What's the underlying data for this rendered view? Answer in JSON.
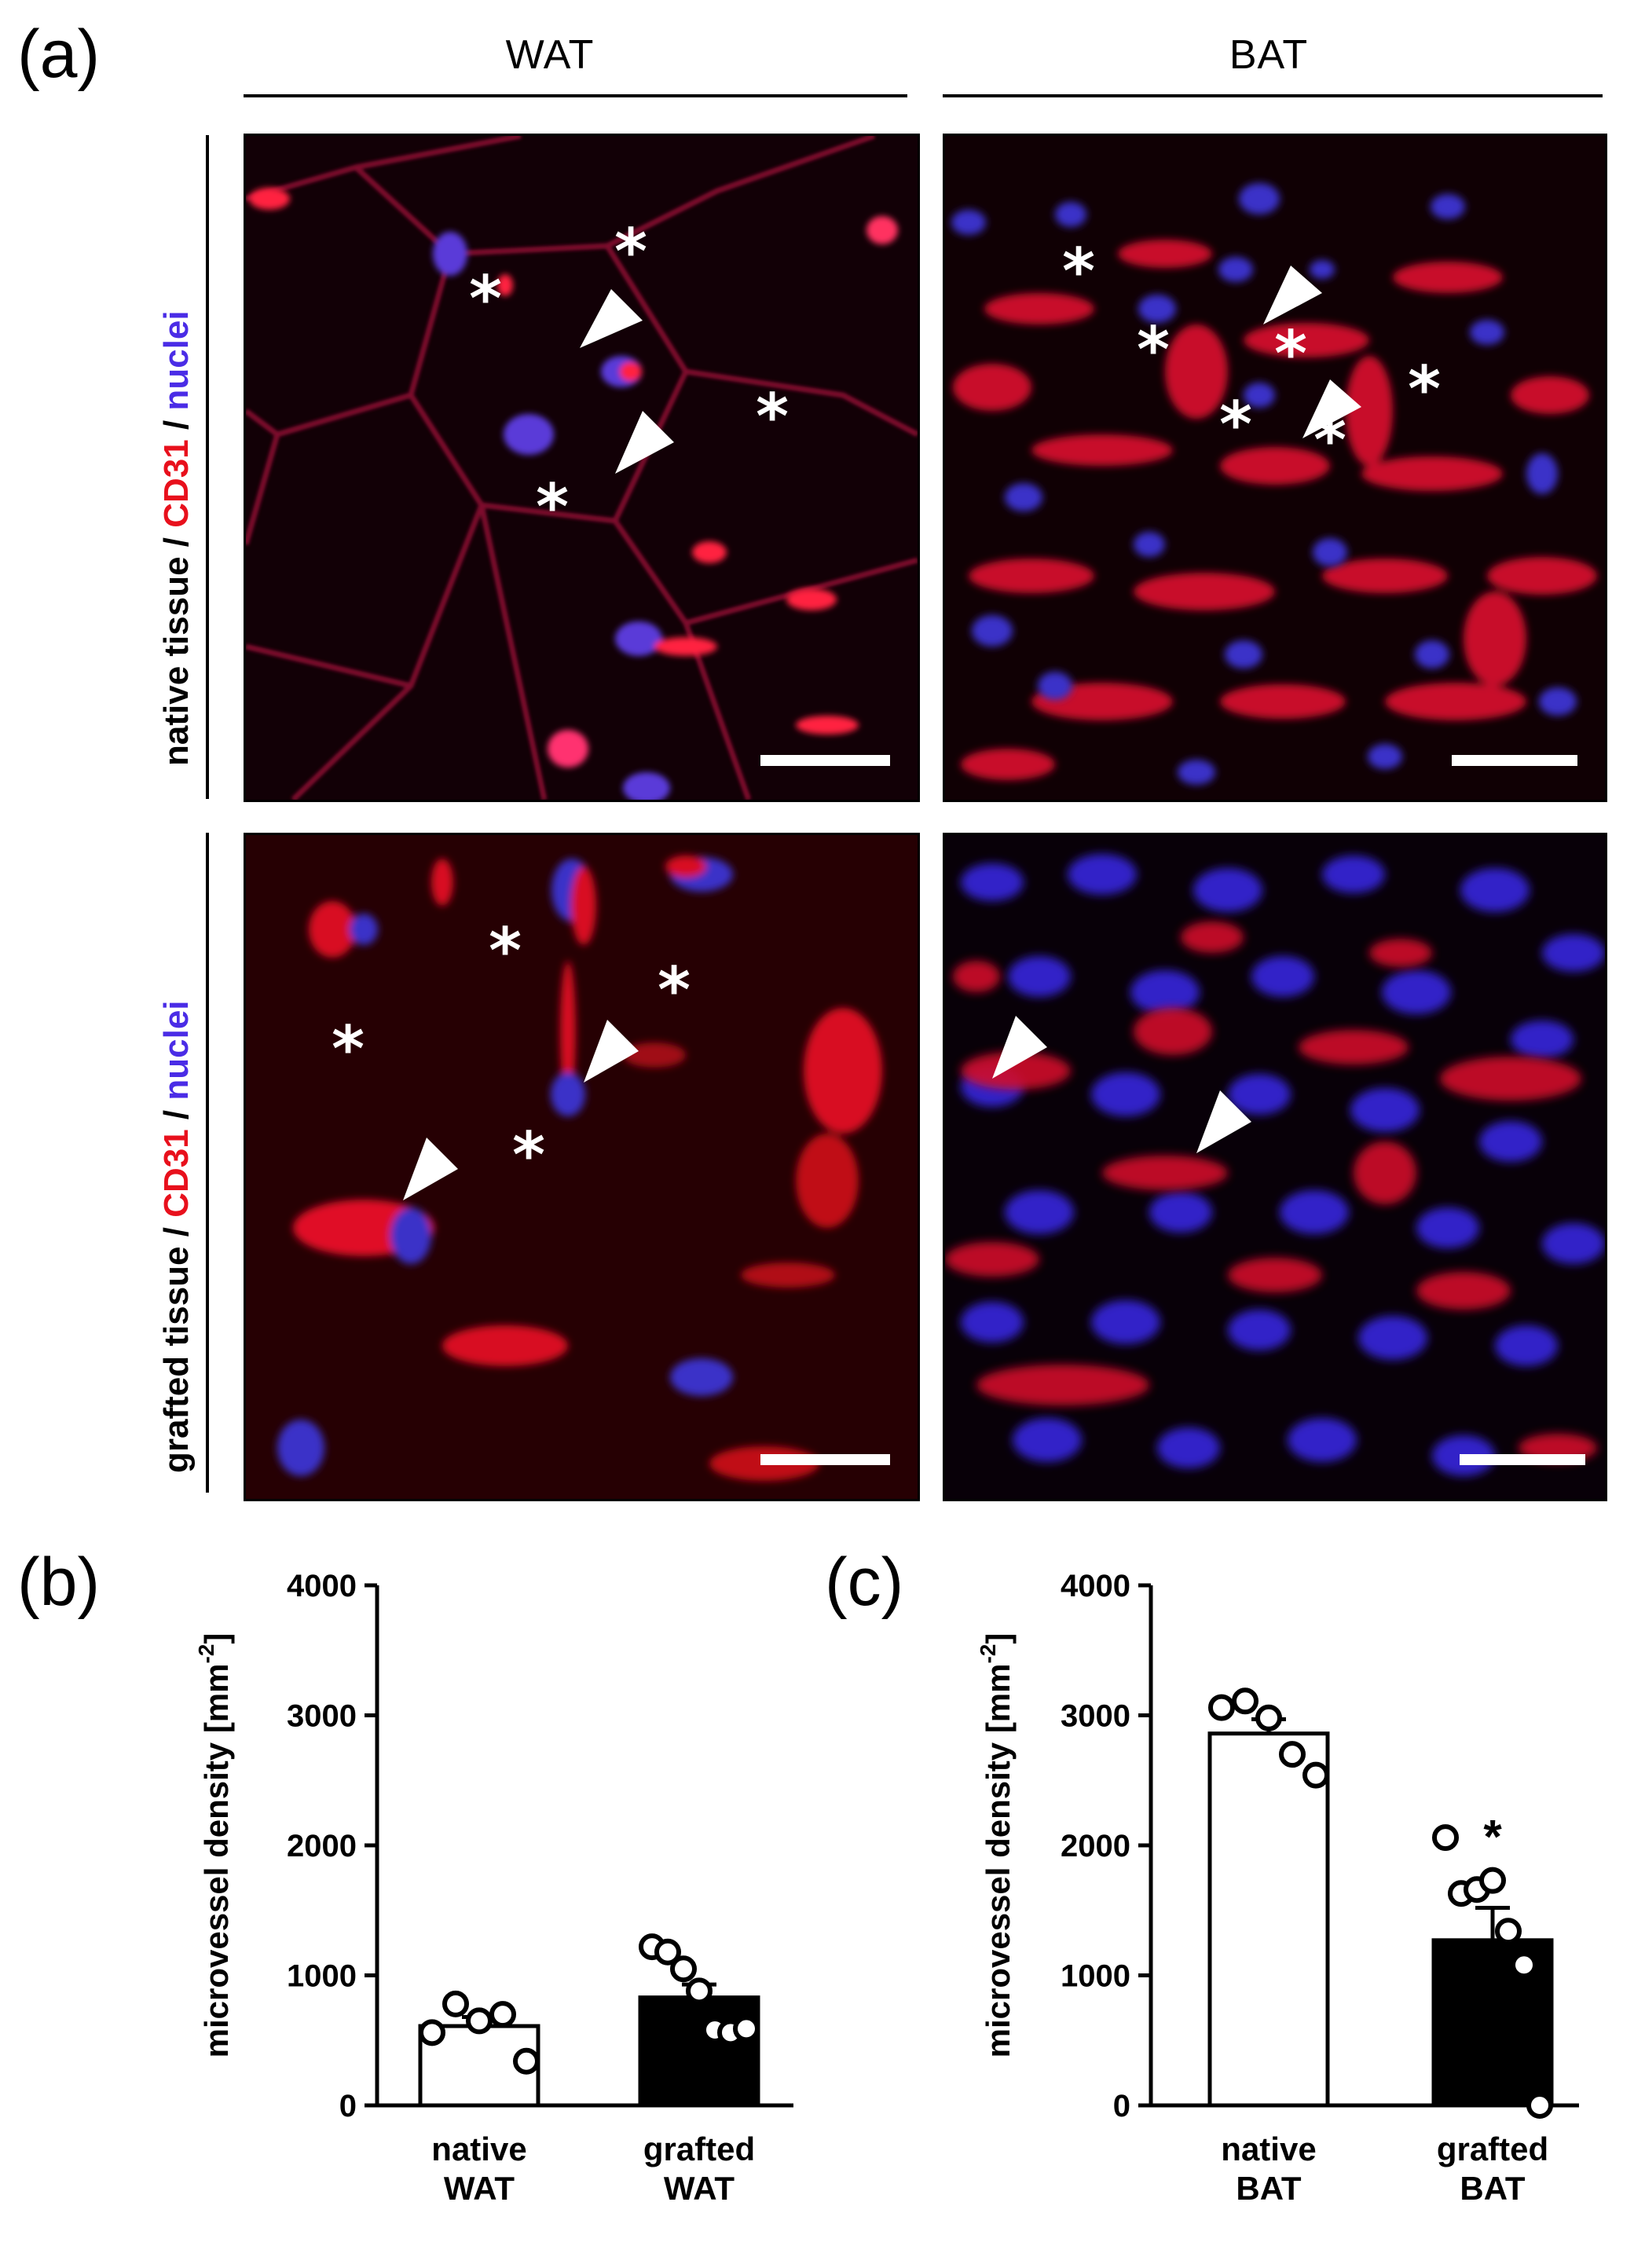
{
  "panels": {
    "a": "(a)",
    "b": "(b)",
    "c": "(c)"
  },
  "columns": [
    "WAT",
    "BAT"
  ],
  "row_labels": [
    {
      "prefix": "native tissue",
      "sep1": " / ",
      "marker1": "CD31",
      "sep2": " / ",
      "marker2": "nuclei"
    },
    {
      "prefix": "grafted tissue",
      "sep1": " / ",
      "marker1": "CD31",
      "sep2": " / ",
      "marker2": "nuclei"
    }
  ],
  "colors": {
    "cd31": "#e8101c",
    "nuclei": "#4a2ce6",
    "bar_native": "#ffffff",
    "bar_grafted": "#000000"
  },
  "chart_data": [
    {
      "type": "bar",
      "panel": "(b)",
      "ylabel": "microvessel density [mm",
      "ylabel_sup": "-2",
      "ylabel_close": "]",
      "ylim": [
        0,
        4000
      ],
      "yticks": [
        0,
        1000,
        2000,
        3000,
        4000
      ],
      "categories": [
        [
          "native",
          "WAT"
        ],
        [
          "grafted",
          "WAT"
        ]
      ],
      "values": [
        610,
        830
      ],
      "sem": [
        70,
        100
      ],
      "points": [
        [
          560,
          780,
          650,
          700,
          340
        ],
        [
          1220,
          1180,
          1050,
          880,
          580,
          560,
          590
        ]
      ],
      "significance": [
        "",
        ""
      ]
    },
    {
      "type": "bar",
      "panel": "(c)",
      "ylabel": "microvessel density [mm",
      "ylabel_sup": "-2",
      "ylabel_close": "]",
      "ylim": [
        0,
        4000
      ],
      "yticks": [
        0,
        1000,
        2000,
        3000,
        4000
      ],
      "categories": [
        [
          "native",
          "BAT"
        ],
        [
          "grafted",
          "BAT"
        ]
      ],
      "values": [
        2860,
        1270
      ],
      "sem": [
        110,
        250
      ],
      "points": [
        [
          3060,
          3110,
          2980,
          2700,
          2540
        ],
        [
          2060,
          1630,
          1660,
          1730,
          1340,
          1080,
          0
        ]
      ],
      "significance": [
        "",
        "*"
      ]
    }
  ]
}
